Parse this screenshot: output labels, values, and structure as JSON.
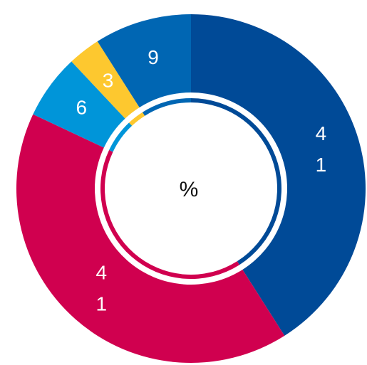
{
  "chart_data": {
    "type": "donut",
    "center_label": "%",
    "values": [
      41,
      41,
      6,
      3,
      9
    ],
    "colors": [
      "#004a97",
      "#d0004f",
      "#0095d9",
      "#fdc82f",
      "#0066b3"
    ]
  }
}
